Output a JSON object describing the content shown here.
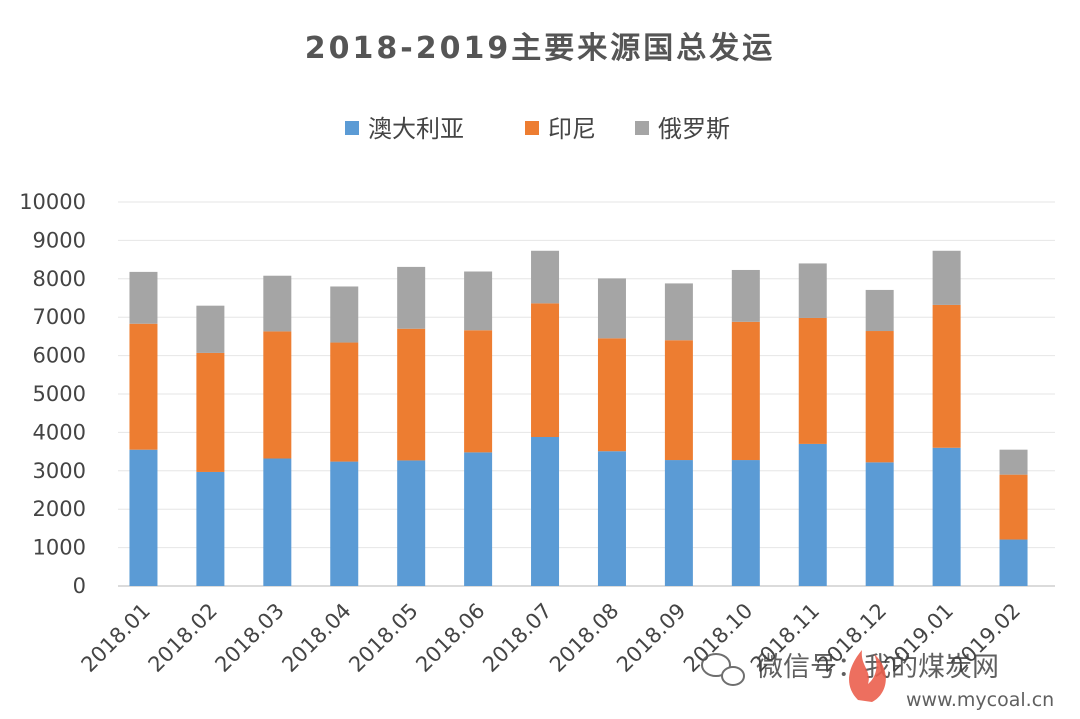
{
  "chart_data": {
    "type": "bar",
    "stacked": true,
    "title": "2018-2019主要来源国总发运",
    "categories": [
      "2018.01",
      "2018.02",
      "2018.03",
      "2018.04",
      "2018.05",
      "2018.06",
      "2018.07",
      "2018.08",
      "2018.09",
      "2018.10",
      "2018.11",
      "2018.12",
      "2019.01",
      "2019.02"
    ],
    "series": [
      {
        "name": "澳大利亚",
        "color": "#5b9bd5",
        "values": [
          3550,
          2970,
          3320,
          3240,
          3270,
          3480,
          3880,
          3510,
          3280,
          3280,
          3700,
          3220,
          3600,
          1210
        ]
      },
      {
        "name": "印尼",
        "color": "#ed7d31",
        "values": [
          3280,
          3100,
          3310,
          3100,
          3430,
          3180,
          3480,
          2940,
          3120,
          3600,
          3280,
          3420,
          3720,
          1690
        ]
      },
      {
        "name": "俄罗斯",
        "color": "#a5a5a5",
        "values": [
          1350,
          1230,
          1450,
          1460,
          1610,
          1530,
          1370,
          1560,
          1480,
          1350,
          1420,
          1070,
          1410,
          650
        ]
      }
    ],
    "ylim": [
      0,
      10000
    ],
    "yticks": [
      0,
      1000,
      2000,
      3000,
      4000,
      5000,
      6000,
      7000,
      8000,
      9000,
      10000
    ],
    "grid": true,
    "legend_position": "top"
  },
  "watermark": {
    "text": "微信号：我的煤炭网",
    "url": "www.mycoal.cn"
  }
}
